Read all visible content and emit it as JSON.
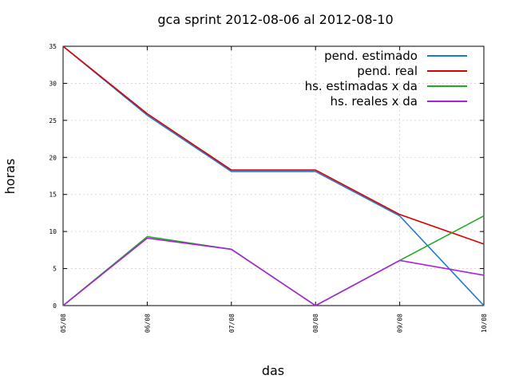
{
  "chart_data": {
    "type": "line",
    "title": "gca sprint 2012-08-06 al 2012-08-10",
    "xlabel": "das",
    "ylabel": "horas",
    "categories": [
      "05/08",
      "06/08",
      "07/08",
      "08/08",
      "09/08",
      "10/08"
    ],
    "ylim": [
      0,
      35
    ],
    "yticks": [
      0,
      5,
      10,
      15,
      20,
      25,
      30,
      35
    ],
    "grid": true,
    "legend_position": "top-right",
    "series": [
      {
        "name": "pend. estimado",
        "color": "#1f77d4",
        "values": [
          35,
          25.7,
          18.1,
          18.1,
          12.1,
          0
        ]
      },
      {
        "name": "pend. real",
        "color": "#dd0000",
        "values": [
          35,
          25.9,
          18.3,
          18.3,
          12.3,
          8.3
        ]
      },
      {
        "name": "hs. estimadas x da",
        "color": "#22aa22",
        "values": [
          0,
          9.3,
          7.6,
          0,
          6.1,
          12.1
        ]
      },
      {
        "name": "hs. reales x da",
        "color": "#aa22dd",
        "values": [
          0,
          9.1,
          7.6,
          0,
          6.1,
          4.1
        ]
      }
    ]
  }
}
